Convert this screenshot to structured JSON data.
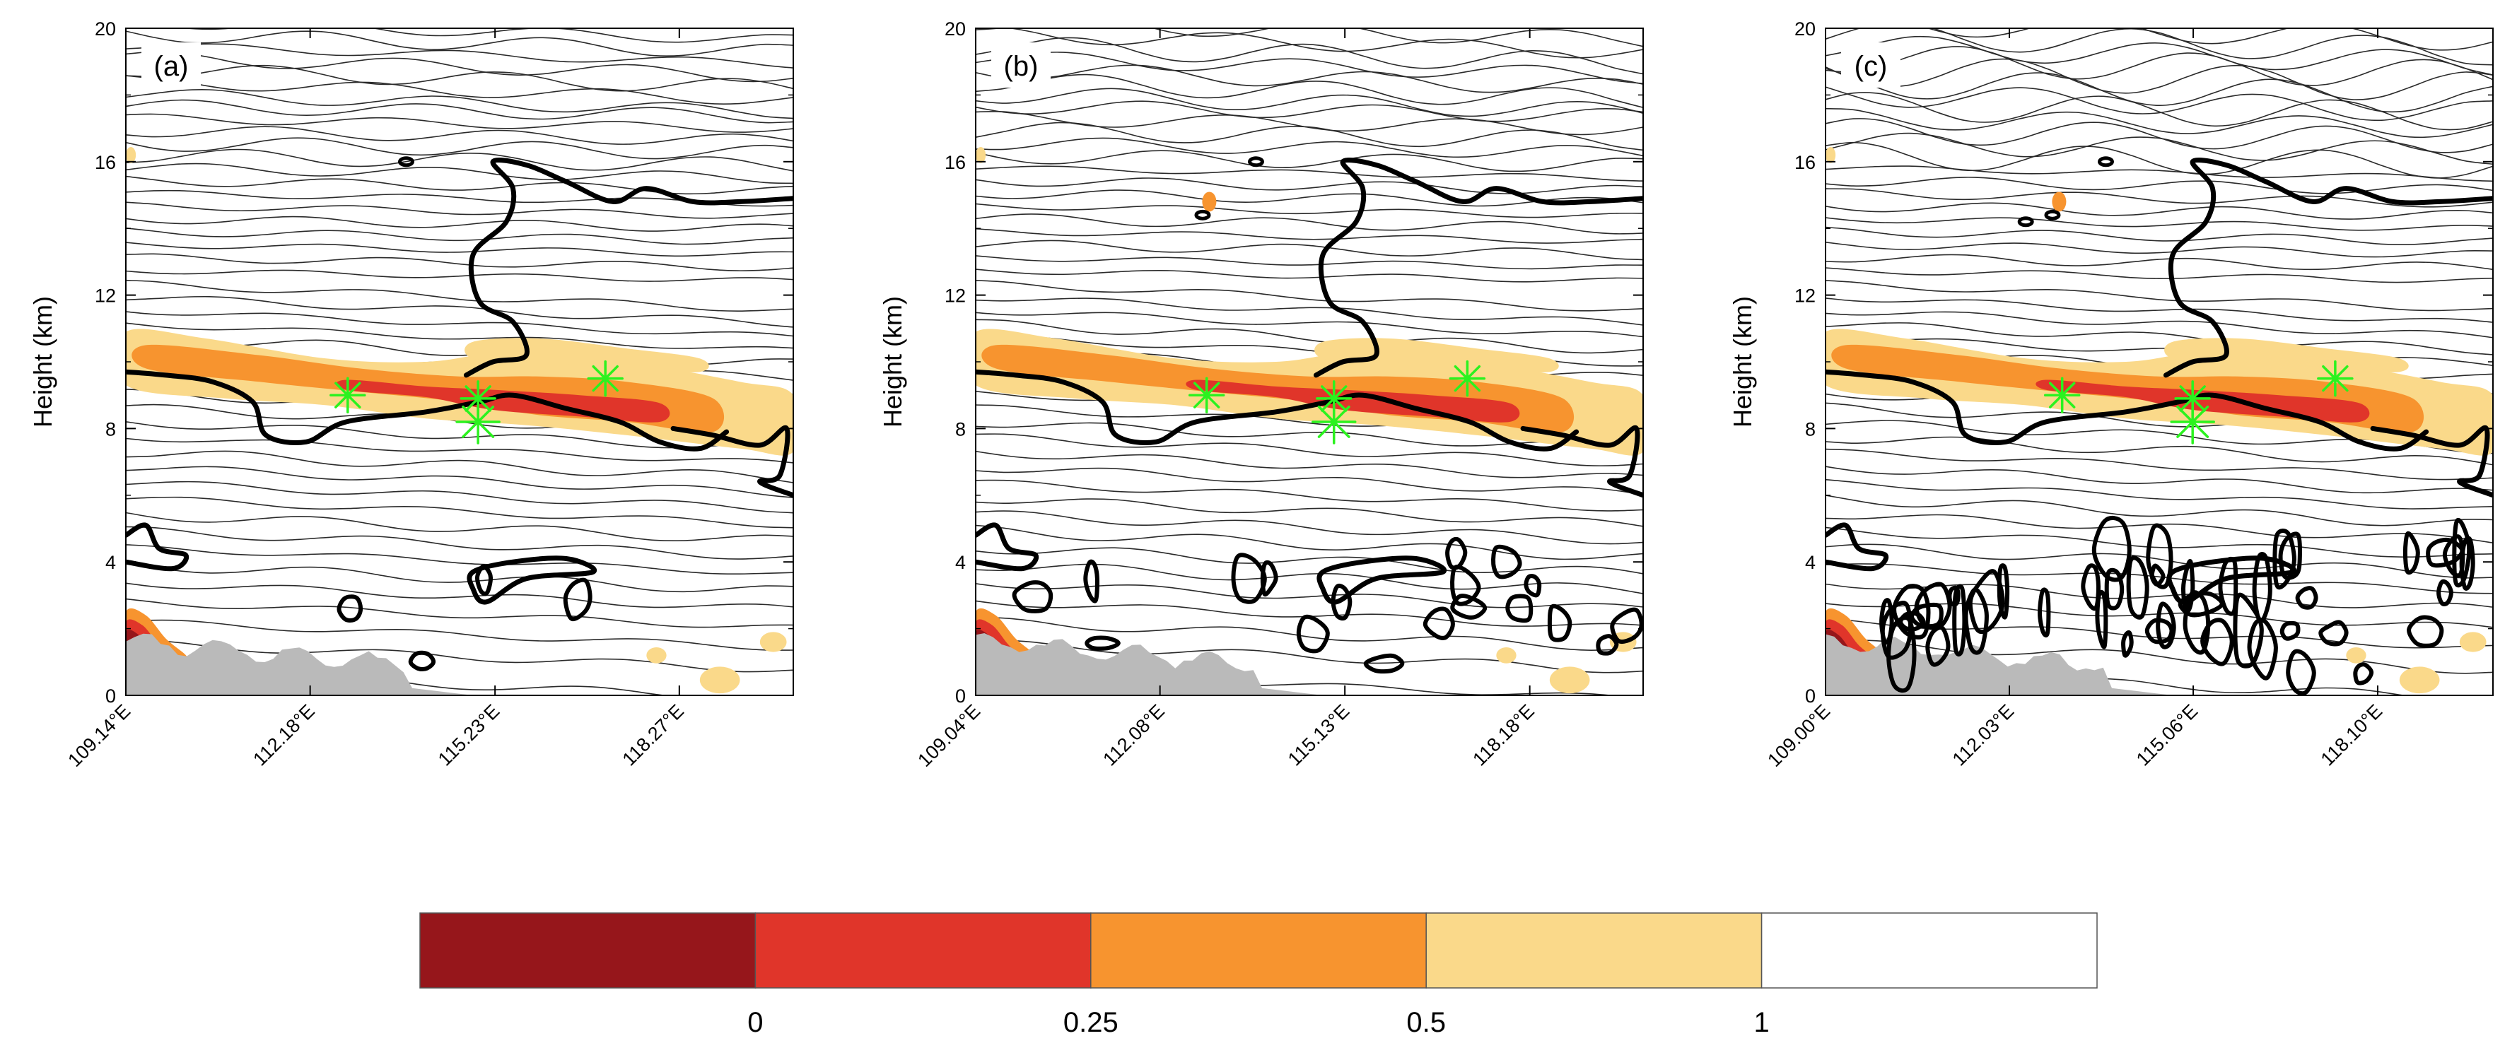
{
  "chart_data": {
    "type": "contour-cross-section",
    "figure_description": "Three vertical cross-section panels of a filled field with isolines, thick cloud outline contours, terrain and star markers",
    "panels": [
      {
        "label": "(a)",
        "ylabel": "Height (km)",
        "ylim": [
          0,
          20
        ],
        "yticks": [
          0,
          4,
          8,
          12,
          16,
          20
        ],
        "xtick_labels": [
          "109.14°E",
          "112.18°E",
          "115.23°E",
          "118.27°E"
        ],
        "xtick_values": [
          109.14,
          112.18,
          115.23,
          118.27
        ],
        "xlim": [
          109.14,
          120.15
        ],
        "stars": [
          {
            "x": 112.8,
            "y": 9.0
          },
          {
            "x": 114.95,
            "y": 8.9
          },
          {
            "x": 114.95,
            "y": 8.2
          },
          {
            "x": 117.05,
            "y": 9.5
          }
        ]
      },
      {
        "label": "(b)",
        "ylabel": "Height (km)",
        "ylim": [
          0,
          20
        ],
        "yticks": [
          0,
          4,
          8,
          12,
          16,
          20
        ],
        "xtick_labels": [
          "109.04°E",
          "112.08°E",
          "115.13°E",
          "118.18°E"
        ],
        "xtick_values": [
          109.04,
          112.08,
          115.13,
          118.18
        ],
        "xlim": [
          109.04,
          120.05
        ],
        "stars": [
          {
            "x": 112.85,
            "y": 9.0
          },
          {
            "x": 114.95,
            "y": 8.9
          },
          {
            "x": 114.95,
            "y": 8.2
          },
          {
            "x": 117.15,
            "y": 9.5
          }
        ]
      },
      {
        "label": "(c)",
        "ylabel": "Height (km)",
        "ylim": [
          0,
          20
        ],
        "yticks": [
          0,
          4,
          8,
          12,
          16,
          20
        ],
        "xtick_labels": [
          "109.00°E",
          "112.03°E",
          "115.06°E",
          "118.10°E"
        ],
        "xtick_values": [
          109.0,
          112.03,
          115.06,
          118.1
        ],
        "xlim": [
          109.0,
          120.0
        ],
        "stars": [
          {
            "x": 112.9,
            "y": 9.0
          },
          {
            "x": 115.05,
            "y": 8.9
          },
          {
            "x": 115.05,
            "y": 8.2
          },
          {
            "x": 117.4,
            "y": 9.5
          }
        ]
      }
    ],
    "colorbar": {
      "levels": [
        "0",
        "0.25",
        "0.5",
        "1"
      ],
      "colors": [
        "#96161b",
        "#e0352a",
        "#f7942f",
        "#fad98a",
        "#ffffff"
      ]
    },
    "colors": {
      "terrain": "#bababa",
      "star": "#2bf21f",
      "isoline": "#2a2a2a",
      "cloud_contour": "#000000"
    }
  }
}
